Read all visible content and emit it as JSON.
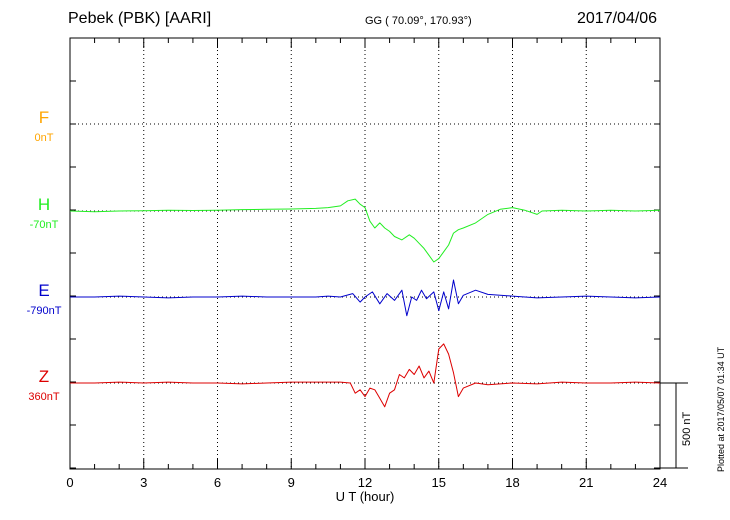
{
  "header": {
    "station": "Pebek (PBK)  [AARI]",
    "coords": "GG ( 70.09°, 170.93°)",
    "date": "2017/04/06"
  },
  "plot_note": "Plotted at 2017/05/07 01:34 UT",
  "scale_label": "500 nT",
  "colors": {
    "F": "#ffa500",
    "H": "#22ee22",
    "E": "#0000cc",
    "Z": "#dd0000"
  },
  "chart_data": {
    "type": "line",
    "xlabel": "U T (hour)",
    "xlim": [
      0,
      24
    ],
    "xticks": [
      "0",
      "3",
      "6",
      "9",
      "12",
      "15",
      "18",
      "21",
      "24"
    ],
    "scale_nT": 500,
    "series": [
      {
        "name": "F",
        "baseline": "0nT",
        "color": "#ffa500",
        "x": [],
        "y": []
      },
      {
        "name": "H",
        "baseline": "-70nT",
        "color": "#22ee22",
        "x": [
          0,
          1,
          2,
          3,
          4,
          5,
          6,
          7,
          8,
          9,
          10,
          10.5,
          11,
          11.3,
          11.6,
          11.8,
          12,
          12.2,
          12.4,
          12.6,
          12.8,
          13,
          13.2,
          13.5,
          13.8,
          14,
          14.2,
          14.4,
          14.6,
          14.8,
          15,
          15.2,
          15.4,
          15.6,
          15.8,
          16,
          16.5,
          17,
          17.5,
          18,
          18.5,
          19,
          19.2,
          20,
          21,
          22,
          23,
          24
        ],
        "y": [
          0,
          -5,
          0,
          2,
          5,
          3,
          5,
          8,
          10,
          12,
          15,
          20,
          30,
          60,
          70,
          40,
          20,
          -60,
          -100,
          -70,
          -100,
          -120,
          -150,
          -170,
          -140,
          -160,
          -190,
          -220,
          -260,
          -300,
          -280,
          -240,
          -200,
          -130,
          -110,
          -100,
          -70,
          -20,
          10,
          20,
          5,
          -20,
          0,
          5,
          0,
          5,
          0,
          5
        ]
      },
      {
        "name": "E",
        "baseline": "-790nT",
        "color": "#0000cc",
        "x": [
          0,
          1,
          2,
          3,
          4,
          5,
          6,
          7,
          8,
          9,
          10,
          10.5,
          11,
          11.5,
          11.8,
          12,
          12.3,
          12.6,
          12.9,
          13.2,
          13.5,
          13.7,
          13.9,
          14.1,
          14.3,
          14.5,
          14.8,
          15,
          15.2,
          15.4,
          15.6,
          15.8,
          16,
          16.5,
          17,
          18,
          19,
          20,
          21,
          22,
          23,
          24
        ],
        "y": [
          0,
          0,
          5,
          0,
          -5,
          0,
          0,
          5,
          0,
          0,
          0,
          5,
          0,
          20,
          -30,
          0,
          30,
          -40,
          20,
          -20,
          40,
          -110,
          0,
          -20,
          40,
          -10,
          30,
          -80,
          30,
          -70,
          100,
          -40,
          10,
          40,
          15,
          5,
          -5,
          0,
          5,
          0,
          -5,
          0
        ]
      },
      {
        "name": "Z",
        "baseline": "360nT",
        "color": "#dd0000",
        "x": [
          0,
          1,
          2,
          3,
          4,
          5,
          6,
          7,
          8,
          9,
          10,
          11,
          11.4,
          11.6,
          11.8,
          12,
          12.2,
          12.4,
          12.6,
          12.8,
          13,
          13.2,
          13.4,
          13.6,
          13.8,
          14,
          14.2,
          14.4,
          14.6,
          14.8,
          15,
          15.2,
          15.4,
          15.6,
          15.8,
          16,
          16.5,
          17,
          18,
          19,
          20,
          21,
          22,
          23,
          24
        ],
        "y": [
          0,
          0,
          5,
          0,
          5,
          0,
          0,
          -5,
          0,
          5,
          5,
          5,
          0,
          -60,
          -40,
          -80,
          -30,
          -40,
          -90,
          -140,
          -60,
          -40,
          50,
          30,
          80,
          50,
          100,
          30,
          70,
          0,
          200,
          230,
          170,
          60,
          -80,
          -30,
          0,
          -10,
          0,
          -5,
          5,
          0,
          0,
          5,
          0
        ]
      }
    ]
  }
}
